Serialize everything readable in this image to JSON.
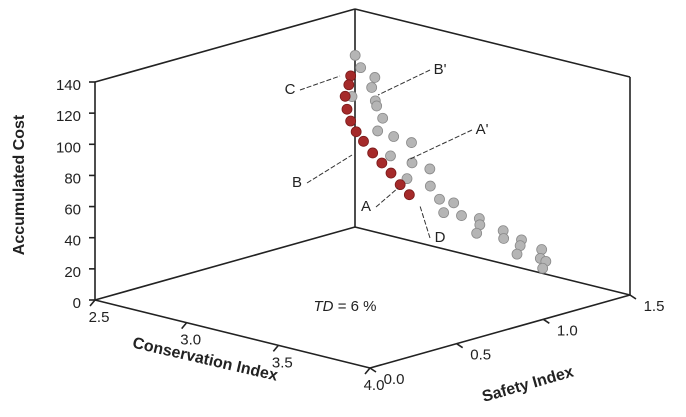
{
  "chart_data": {
    "type": "scatter3d",
    "xlabel": "Conservation Index",
    "ylabel": "Safety Index",
    "zlabel": "Accumulated Cost",
    "xlim": [
      2.5,
      4.0
    ],
    "ylim": [
      0.0,
      1.5
    ],
    "zlim": [
      0,
      140
    ],
    "xticks": [
      {
        "value": 2.5,
        "label": "2.5"
      },
      {
        "value": 3.0,
        "label": "3.0"
      },
      {
        "value": 3.5,
        "label": "3.5"
      },
      {
        "value": 4.0,
        "label": "4.0"
      }
    ],
    "yticks": [
      {
        "value": 0.0,
        "label": "0.0"
      },
      {
        "value": 0.5,
        "label": "0.5"
      },
      {
        "value": 1.0,
        "label": "1.0"
      },
      {
        "value": 1.5,
        "label": "1.5"
      }
    ],
    "zticks": [
      0,
      20,
      40,
      60,
      80,
      100,
      120,
      140
    ],
    "series": [
      {
        "color": "#b5b5b5",
        "x": [
          2.69,
          2.72,
          2.75,
          2.78,
          2.72,
          2.8,
          2.76,
          2.84,
          2.86,
          2.9,
          2.95,
          2.93,
          3.0,
          3.05,
          3.02,
          3.1,
          3.15,
          3.18,
          3.22,
          3.27,
          3.32,
          3.37,
          3.4,
          3.45,
          3.5,
          3.55,
          3.59,
          3.62,
          3.66,
          3.7,
          3.73,
          3.76
        ],
        "y": [
          1.3,
          1.3,
          1.35,
          1.3,
          1.25,
          1.3,
          1.35,
          1.3,
          1.25,
          1.3,
          1.35,
          1.25,
          1.3,
          1.35,
          1.25,
          1.3,
          1.3,
          1.35,
          1.25,
          1.3,
          1.35,
          1.3,
          1.25,
          1.35,
          1.3,
          1.35,
          1.3,
          1.25,
          1.35,
          1.3,
          1.3,
          1.25
        ],
        "z": [
          122,
          115,
          108,
          104,
          98,
          96,
          90,
          86,
          80,
          76,
          72,
          66,
          62,
          58,
          54,
          50,
          43,
          40,
          38,
          36,
          34,
          33,
          30,
          30,
          28,
          27,
          26,
          23,
          24,
          21,
          20,
          18
        ]
      },
      {
        "color": "#a52a2a",
        "x": [
          2.76,
          2.75,
          2.73,
          2.74,
          2.76,
          2.79,
          2.83,
          2.88,
          2.93,
          2.98,
          3.03,
          3.08
        ],
        "y": [
          1.2,
          1.2,
          1.2,
          1.2,
          1.2,
          1.2,
          1.2,
          1.2,
          1.2,
          1.2,
          1.2,
          1.2
        ],
        "z": [
          114,
          108,
          100,
          92,
          85,
          79,
          74,
          68,
          63,
          58,
          52,
          47
        ]
      }
    ],
    "annotations": [
      "C",
      "B'",
      "A'",
      "B",
      "A",
      "D"
    ],
    "note": {
      "italic": "TD",
      "text": "= 6 %"
    }
  }
}
